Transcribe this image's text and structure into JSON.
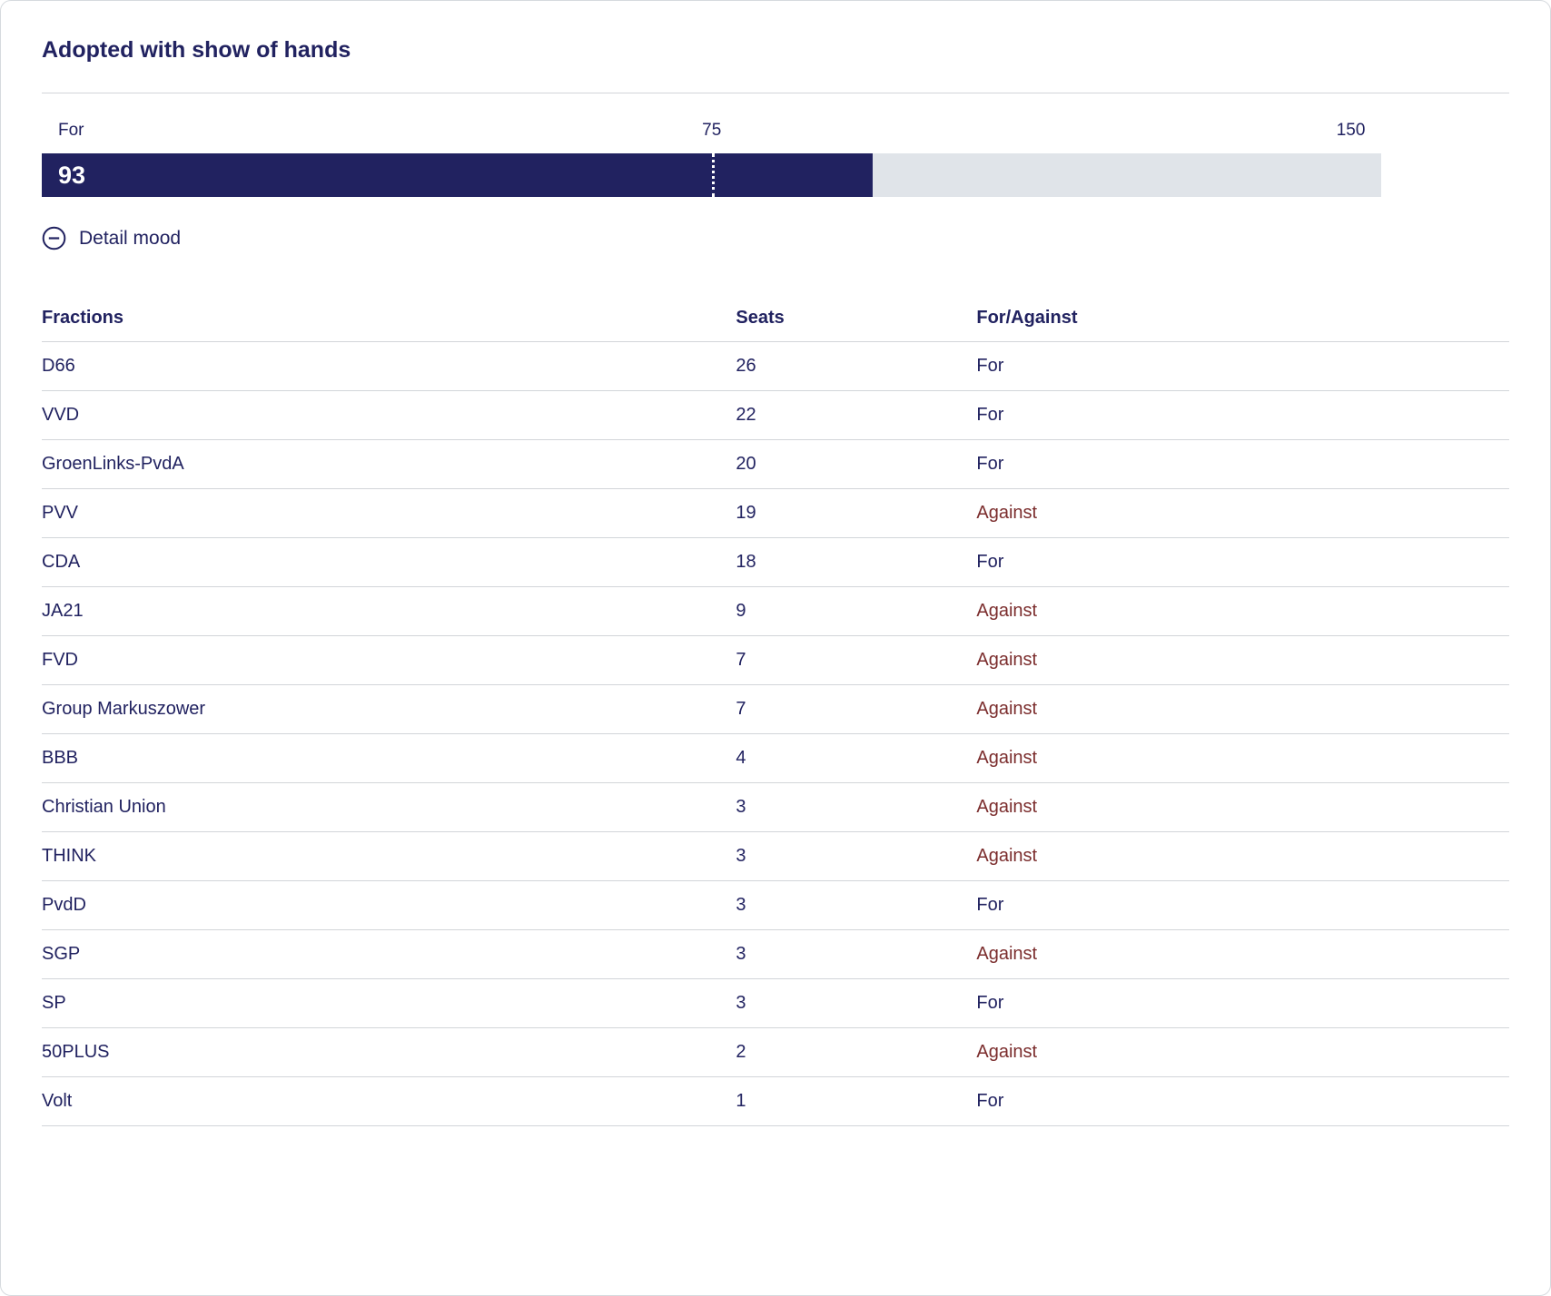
{
  "title": "Adopted with show of hands",
  "colors": {
    "navy": "#212260",
    "maroon": "#7b2d2d",
    "bar_bg": "#e0e4e9",
    "border": "#d6dade",
    "row_line": "#d2d5d9"
  },
  "vote_bar": {
    "label": "For",
    "value": 93,
    "midpoint": 75,
    "max": 150
  },
  "detail_toggle": {
    "label": "Detail mood",
    "icon": "minus-circle-icon"
  },
  "table": {
    "headers": [
      "Fractions",
      "Seats",
      "For/Against"
    ],
    "rows": [
      {
        "fraction": "D66",
        "seats": 26,
        "vote": "For"
      },
      {
        "fraction": "VVD",
        "seats": 22,
        "vote": "For"
      },
      {
        "fraction": "GroenLinks-PvdA",
        "seats": 20,
        "vote": "For"
      },
      {
        "fraction": "PVV",
        "seats": 19,
        "vote": "Against"
      },
      {
        "fraction": "CDA",
        "seats": 18,
        "vote": "For"
      },
      {
        "fraction": "JA21",
        "seats": 9,
        "vote": "Against"
      },
      {
        "fraction": "FVD",
        "seats": 7,
        "vote": "Against"
      },
      {
        "fraction": "Group Markuszower",
        "seats": 7,
        "vote": "Against"
      },
      {
        "fraction": "BBB",
        "seats": 4,
        "vote": "Against"
      },
      {
        "fraction": "Christian Union",
        "seats": 3,
        "vote": "Against"
      },
      {
        "fraction": "THINK",
        "seats": 3,
        "vote": "Against"
      },
      {
        "fraction": "PvdD",
        "seats": 3,
        "vote": "For"
      },
      {
        "fraction": "SGP",
        "seats": 3,
        "vote": "Against"
      },
      {
        "fraction": "SP",
        "seats": 3,
        "vote": "For"
      },
      {
        "fraction": "50PLUS",
        "seats": 2,
        "vote": "Against"
      },
      {
        "fraction": "Volt",
        "seats": 1,
        "vote": "For"
      }
    ]
  },
  "chart_data": [
    {
      "type": "bar",
      "title": "Adopted with show of hands",
      "orientation": "horizontal",
      "categories": [
        "For"
      ],
      "values": [
        93
      ],
      "xlim": [
        0,
        150
      ],
      "majority_marker": 75,
      "tick_labels": [
        "75",
        "150"
      ],
      "bar_color": "#212260",
      "track_color": "#e0e4e9"
    },
    {
      "type": "table",
      "columns": [
        "Fractions",
        "Seats",
        "For/Against"
      ],
      "rows": [
        [
          "D66",
          26,
          "For"
        ],
        [
          "VVD",
          22,
          "For"
        ],
        [
          "GroenLinks-PvdA",
          20,
          "For"
        ],
        [
          "PVV",
          19,
          "Against"
        ],
        [
          "CDA",
          18,
          "For"
        ],
        [
          "JA21",
          9,
          "Against"
        ],
        [
          "FVD",
          7,
          "Against"
        ],
        [
          "Group Markuszower",
          7,
          "Against"
        ],
        [
          "BBB",
          4,
          "Against"
        ],
        [
          "Christian Union",
          3,
          "Against"
        ],
        [
          "THINK",
          3,
          "Against"
        ],
        [
          "PvdD",
          3,
          "For"
        ],
        [
          "SGP",
          3,
          "Against"
        ],
        [
          "SP",
          3,
          "For"
        ],
        [
          "50PLUS",
          2,
          "Against"
        ],
        [
          "Volt",
          1,
          "For"
        ]
      ]
    }
  ]
}
